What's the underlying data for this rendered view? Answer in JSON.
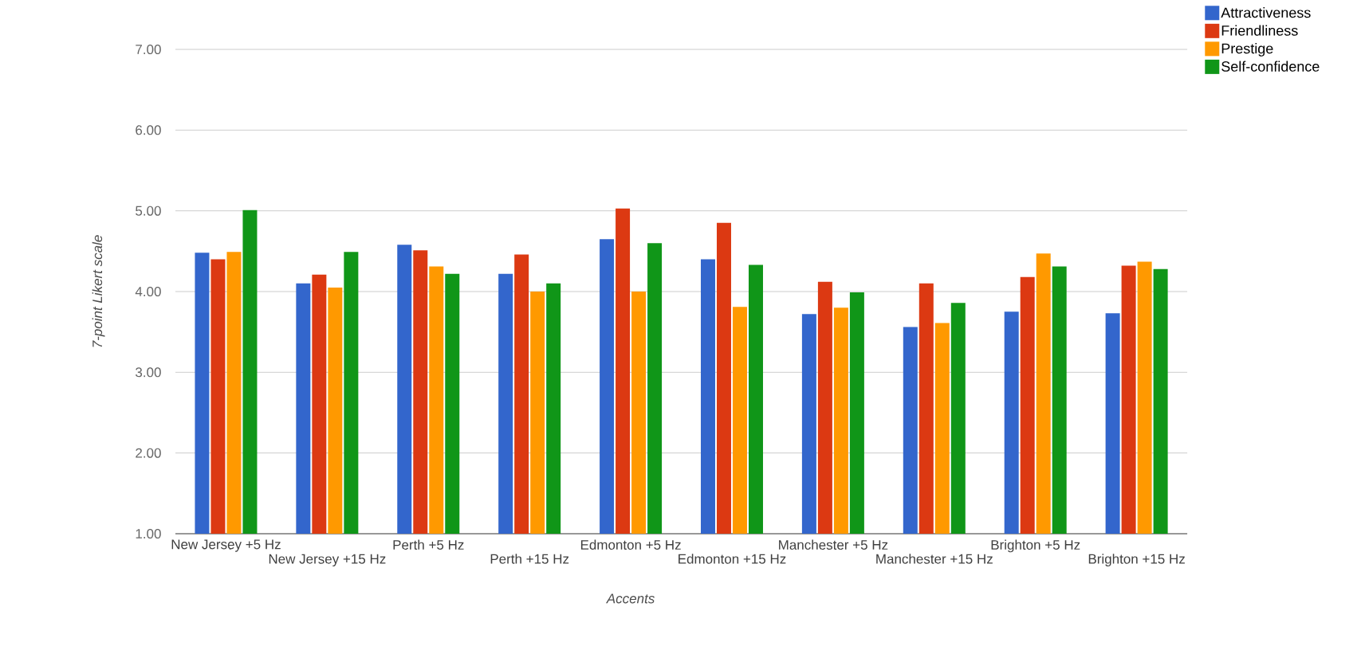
{
  "chart_data": {
    "type": "bar",
    "xlabel": "Accents",
    "ylabel": "7-point Likert scale",
    "categories": [
      "New Jersey +5 Hz",
      "New Jersey +15 Hz",
      "Perth +5 Hz",
      "Perth +15 Hz",
      "Edmonton +5 Hz",
      "Edmonton +15 Hz",
      "Manchester +5 Hz",
      "Manchester +15 Hz",
      "Brighton +5 Hz",
      "Brighton +15 Hz"
    ],
    "series": [
      {
        "name": "Attractiveness",
        "color": "#3366cc",
        "values": [
          4.48,
          4.1,
          4.58,
          4.22,
          4.65,
          4.4,
          3.72,
          3.56,
          3.75,
          3.73
        ]
      },
      {
        "name": "Friendliness",
        "color": "#dc3912",
        "values": [
          4.4,
          4.21,
          4.51,
          4.46,
          5.03,
          4.85,
          4.12,
          4.1,
          4.18,
          4.32
        ]
      },
      {
        "name": "Prestige",
        "color": "#ff9900",
        "values": [
          4.49,
          4.05,
          4.31,
          4.0,
          4.0,
          3.81,
          3.8,
          3.61,
          4.47,
          4.37
        ]
      },
      {
        "name": "Self-confidence",
        "color": "#109618",
        "values": [
          5.01,
          4.49,
          4.22,
          4.1,
          4.6,
          4.33,
          3.99,
          3.86,
          4.31,
          4.28
        ]
      }
    ],
    "ylim": [
      1,
      7
    ],
    "yticks": [
      {
        "value": 1,
        "label": "1.00"
      },
      {
        "value": 2,
        "label": "2.00"
      },
      {
        "value": 3,
        "label": "3.00"
      },
      {
        "value": 4,
        "label": "4.00"
      },
      {
        "value": 5,
        "label": "5.00"
      },
      {
        "value": 6,
        "label": "6.00"
      },
      {
        "value": 7,
        "label": "7.00"
      }
    ],
    "grid": "y",
    "legend": "top right"
  }
}
